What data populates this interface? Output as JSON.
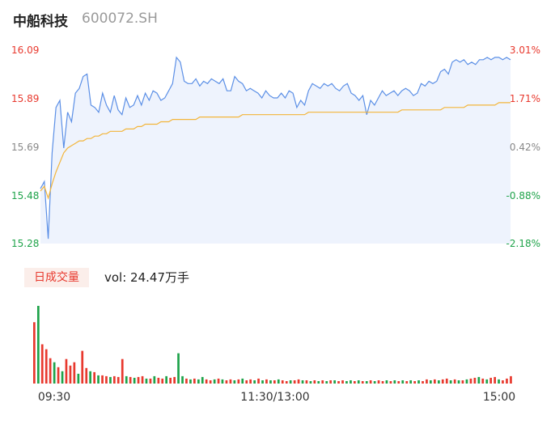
{
  "header": {
    "name": "中船科技",
    "code": "600072.SH"
  },
  "volume_panel": {
    "badge": "日成交量",
    "summary": "vol: 24.47万手"
  },
  "colors": {
    "up": "#e8392e",
    "down": "#1fa34a",
    "price_line": "#5b8fe6",
    "avg_line": "#f3b53a",
    "neutral": "#888888"
  },
  "chart_data": [
    {
      "type": "line",
      "x_ticks": [
        "09:30",
        "11:30/13:00",
        "15:00"
      ],
      "ylim": [
        15.28,
        16.09
      ],
      "y_ticks_left": [
        {
          "label": "16.09",
          "color": "up"
        },
        {
          "label": "15.89",
          "color": "up"
        },
        {
          "label": "15.69",
          "color": "neutral"
        },
        {
          "label": "15.48",
          "color": "down"
        },
        {
          "label": "15.28",
          "color": "down"
        }
      ],
      "y_ticks_right": [
        {
          "label": "3.01%",
          "color": "up"
        },
        {
          "label": "1.71%",
          "color": "up"
        },
        {
          "label": "0.42%",
          "color": "neutral"
        },
        {
          "label": "-0.88%",
          "color": "down"
        },
        {
          "label": "-2.18%",
          "color": "down"
        }
      ],
      "series": [
        {
          "key": "price",
          "values": [
            15.51,
            15.54,
            15.3,
            15.66,
            15.85,
            15.88,
            15.68,
            15.83,
            15.79,
            15.91,
            15.93,
            15.98,
            15.99,
            15.86,
            15.85,
            15.83,
            15.91,
            15.86,
            15.83,
            15.9,
            15.84,
            15.82,
            15.89,
            15.85,
            15.86,
            15.9,
            15.86,
            15.91,
            15.88,
            15.92,
            15.91,
            15.88,
            15.89,
            15.92,
            15.95,
            16.06,
            16.04,
            15.96,
            15.95,
            15.95,
            15.97,
            15.94,
            15.96,
            15.95,
            15.97,
            15.96,
            15.95,
            15.97,
            15.92,
            15.92,
            15.98,
            15.96,
            15.95,
            15.92,
            15.93,
            15.92,
            15.91,
            15.89,
            15.92,
            15.9,
            15.89,
            15.89,
            15.91,
            15.89,
            15.92,
            15.91,
            15.85,
            15.88,
            15.86,
            15.92,
            15.95,
            15.94,
            15.93,
            15.95,
            15.94,
            15.95,
            15.93,
            15.92,
            15.94,
            15.95,
            15.91,
            15.9,
            15.88,
            15.9,
            15.82,
            15.88,
            15.86,
            15.89,
            15.92,
            15.9,
            15.91,
            15.92,
            15.9,
            15.92,
            15.93,
            15.92,
            15.9,
            15.91,
            15.95,
            15.94,
            15.96,
            15.95,
            15.96,
            16.0,
            16.01,
            15.99,
            16.04,
            16.05,
            16.04,
            16.05,
            16.03,
            16.04,
            16.03,
            16.05,
            16.05,
            16.06,
            16.05,
            16.06,
            16.06,
            16.05,
            16.06,
            16.05
          ],
          "color": "price_line"
        },
        {
          "key": "avg",
          "values": [
            15.5,
            15.52,
            15.47,
            15.53,
            15.58,
            15.62,
            15.66,
            15.68,
            15.69,
            15.7,
            15.71,
            15.71,
            15.72,
            15.72,
            15.73,
            15.73,
            15.74,
            15.74,
            15.75,
            15.75,
            15.75,
            15.75,
            15.76,
            15.76,
            15.76,
            15.77,
            15.77,
            15.78,
            15.78,
            15.78,
            15.78,
            15.79,
            15.79,
            15.79,
            15.8,
            15.8,
            15.8,
            15.8,
            15.8,
            15.8,
            15.8,
            15.81,
            15.81,
            15.81,
            15.81,
            15.81,
            15.81,
            15.81,
            15.81,
            15.81,
            15.81,
            15.81,
            15.82,
            15.82,
            15.82,
            15.82,
            15.82,
            15.82,
            15.82,
            15.82,
            15.82,
            15.82,
            15.82,
            15.82,
            15.82,
            15.82,
            15.82,
            15.82,
            15.82,
            15.83,
            15.83,
            15.83,
            15.83,
            15.83,
            15.83,
            15.83,
            15.83,
            15.83,
            15.83,
            15.83,
            15.83,
            15.83,
            15.83,
            15.83,
            15.83,
            15.83,
            15.83,
            15.83,
            15.83,
            15.83,
            15.83,
            15.83,
            15.83,
            15.84,
            15.84,
            15.84,
            15.84,
            15.84,
            15.84,
            15.84,
            15.84,
            15.84,
            15.84,
            15.84,
            15.85,
            15.85,
            15.85,
            15.85,
            15.85,
            15.85,
            15.86,
            15.86,
            15.86,
            15.86,
            15.86,
            15.86,
            15.86,
            15.86,
            15.87,
            15.87,
            15.87,
            15.87
          ],
          "color": "avg_line"
        }
      ]
    },
    {
      "type": "bar",
      "volume": [
        7.5,
        9.5,
        4.8,
        4.2,
        3.1,
        2.6,
        2.0,
        1.5,
        3.0,
        2.2,
        2.6,
        1.2,
        4.0,
        1.9,
        1.5,
        1.4,
        1.0,
        1.0,
        0.9,
        0.8,
        0.9,
        0.8,
        3.0,
        0.9,
        0.8,
        0.7,
        0.8,
        0.9,
        0.6,
        0.6,
        0.9,
        0.7,
        0.6,
        0.9,
        0.7,
        0.8,
        3.7,
        0.9,
        0.6,
        0.5,
        0.6,
        0.5,
        0.8,
        0.5,
        0.4,
        0.5,
        0.6,
        0.5,
        0.4,
        0.5,
        0.4,
        0.5,
        0.6,
        0.4,
        0.5,
        0.4,
        0.6,
        0.4,
        0.5,
        0.4,
        0.4,
        0.5,
        0.4,
        0.3,
        0.4,
        0.4,
        0.5,
        0.4,
        0.4,
        0.3,
        0.4,
        0.3,
        0.4,
        0.3,
        0.4,
        0.4,
        0.3,
        0.4,
        0.3,
        0.4,
        0.3,
        0.4,
        0.3,
        0.3,
        0.4,
        0.3,
        0.4,
        0.3,
        0.4,
        0.3,
        0.4,
        0.3,
        0.4,
        0.3,
        0.4,
        0.3,
        0.4,
        0.3,
        0.5,
        0.4,
        0.5,
        0.4,
        0.5,
        0.6,
        0.4,
        0.5,
        0.4,
        0.4,
        0.5,
        0.6,
        0.7,
        0.8,
        0.6,
        0.5,
        0.7,
        0.8,
        0.5,
        0.4,
        0.6,
        0.9
      ],
      "direction": [
        "u",
        "d",
        "u",
        "u",
        "u",
        "d",
        "u",
        "d",
        "u",
        "u",
        "u",
        "d",
        "u",
        "u",
        "d",
        "u",
        "d",
        "u",
        "u",
        "d",
        "u",
        "u",
        "u",
        "d",
        "u",
        "d",
        "u",
        "u",
        "d",
        "u",
        "d",
        "u",
        "u",
        "d",
        "u",
        "u",
        "d",
        "d",
        "u",
        "d",
        "u",
        "d",
        "d",
        "u",
        "u",
        "d",
        "u",
        "d",
        "u",
        "u",
        "d",
        "u",
        "d",
        "u",
        "u",
        "d",
        "u",
        "d",
        "u",
        "d",
        "u",
        "d",
        "u",
        "u",
        "d",
        "u",
        "u",
        "d",
        "u",
        "d",
        "u",
        "d",
        "u",
        "d",
        "u",
        "d",
        "u",
        "u",
        "d",
        "d",
        "u",
        "d",
        "u",
        "d",
        "u",
        "d",
        "u",
        "u",
        "d",
        "u",
        "d",
        "u",
        "d",
        "u",
        "d",
        "u",
        "d",
        "u",
        "u",
        "d",
        "u",
        "d",
        "u",
        "u",
        "d",
        "u",
        "d",
        "u",
        "d",
        "u",
        "u",
        "d",
        "u",
        "d",
        "u",
        "u",
        "d",
        "u",
        "u",
        "u"
      ]
    }
  ]
}
